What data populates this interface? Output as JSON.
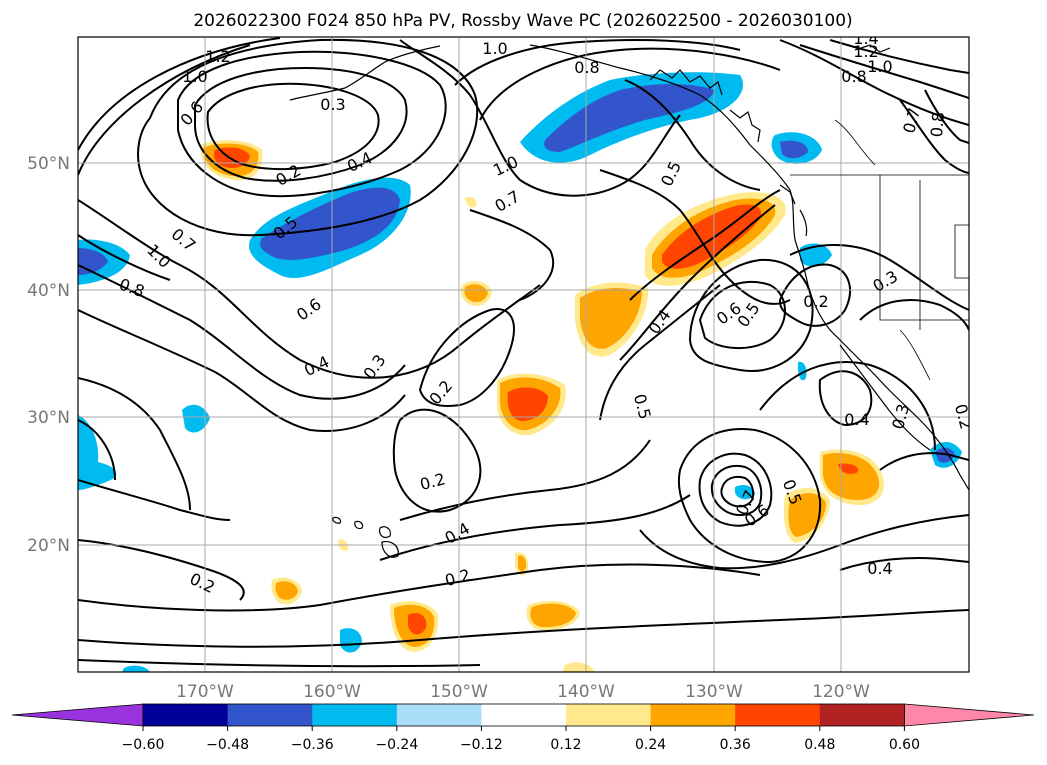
{
  "title": "2026022300 F024 850 hPa PV, Rossby Wave PC (2026022500 - 2026030100)",
  "map": {
    "lat_labels": [
      "50°N",
      "40°N",
      "30°N",
      "20°N"
    ],
    "lon_labels": [
      "170°W",
      "160°W",
      "150°W",
      "140°W",
      "130°W",
      "120°W"
    ]
  },
  "colorbar": {
    "colors": [
      "#9933dd",
      "#000099",
      "#3355cc",
      "#00bbf0",
      "#aaddf7",
      "#ffffff",
      "#ffe98c",
      "#ffa500",
      "#ff4500",
      "#b22222",
      "#ff88aa"
    ],
    "labels": [
      "−0.60",
      "−0.48",
      "−0.36",
      "−0.24",
      "−0.12",
      "0.12",
      "0.24",
      "0.36",
      "0.48",
      "0.60"
    ]
  },
  "contour_labels": [
    {
      "text": "1.2"
    },
    {
      "text": "1.0"
    },
    {
      "text": "0.6"
    },
    {
      "text": "0.3"
    },
    {
      "text": "0.2"
    },
    {
      "text": "0.4"
    },
    {
      "text": "0.5"
    },
    {
      "text": "1.0"
    },
    {
      "text": "0.7"
    },
    {
      "text": "0.8"
    },
    {
      "text": "0.6"
    },
    {
      "text": "0.4"
    },
    {
      "text": "0.3"
    },
    {
      "text": "0.2"
    },
    {
      "text": "1.0"
    },
    {
      "text": "0.8"
    },
    {
      "text": "1.0"
    },
    {
      "text": "0.7"
    },
    {
      "text": "0.5"
    },
    {
      "text": "0.4"
    },
    {
      "text": "0.6"
    },
    {
      "text": "0.5"
    },
    {
      "text": "0.5"
    },
    {
      "text": "0.2"
    },
    {
      "text": "0.4"
    },
    {
      "text": "0.2"
    },
    {
      "text": "0.2"
    },
    {
      "text": "0.7"
    },
    {
      "text": "0.6"
    },
    {
      "text": "0.5"
    },
    {
      "text": "0.2"
    },
    {
      "text": "0.3"
    },
    {
      "text": "0.4"
    },
    {
      "text": "0.3"
    },
    {
      "text": "0.2"
    },
    {
      "text": "0.4"
    },
    {
      "text": "1.4"
    },
    {
      "text": "1.2"
    },
    {
      "text": "1.0"
    },
    {
      "text": "0.8"
    },
    {
      "text": "0.7"
    },
    {
      "text": "0.8"
    }
  ]
}
